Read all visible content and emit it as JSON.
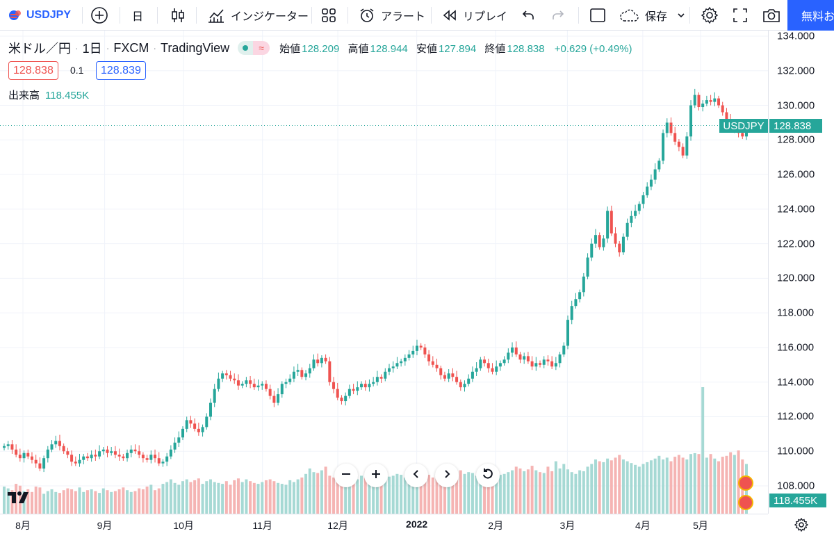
{
  "toolbar": {
    "symbol": "USDJPY",
    "interval": "日",
    "indicators_label": "インジケーター",
    "alert_label": "アラート",
    "replay_label": "リプレイ",
    "save_label": "保存",
    "free_button": "無料お"
  },
  "legend": {
    "title": "米ドル／円",
    "interval": "1日",
    "exchange": "FXCM",
    "source": "TradingView",
    "pill_symbol": "≈",
    "open_label": "始値",
    "open": "128.209",
    "high_label": "高値",
    "high": "128.944",
    "low_label": "安値",
    "low": "127.894",
    "close_label": "終値",
    "close": "128.838",
    "change": "+0.629 (+0.49%)",
    "bid": "128.838",
    "spread": "0.1",
    "ask": "128.839",
    "volume_label": "出来高",
    "volume": "118.455K"
  },
  "tags": {
    "symbol": "USDJPY",
    "last_price": "128.838",
    "volume": "118.455K"
  },
  "colors": {
    "up": "#26a69a",
    "down": "#ef5350",
    "accent": "#2962ff"
  },
  "chart_data": {
    "type": "candlestick",
    "title": "米ドル／円 · 1日 · FXCM",
    "y_ticks": [
      "134.000",
      "132.000",
      "130.000",
      "128.000",
      "126.000",
      "124.000",
      "122.000",
      "120.000",
      "118.000",
      "116.000",
      "114.000",
      "112.000",
      "110.000",
      "108.000"
    ],
    "ylim": [
      107,
      134.2
    ],
    "x_ticks": [
      "8月",
      "9月",
      "10月",
      "11月",
      "12月",
      "2022",
      "2月",
      "3月",
      "4月",
      "5月"
    ],
    "last_close": 128.838,
    "closes": [
      110.3,
      110.4,
      110.1,
      109.8,
      109.6,
      109.9,
      109.7,
      109.5,
      109.3,
      109.0,
      109.6,
      110.1,
      110.4,
      110.6,
      110.3,
      110.0,
      109.8,
      109.4,
      109.3,
      109.5,
      109.7,
      109.6,
      109.8,
      109.7,
      110.0,
      110.1,
      109.9,
      110.0,
      109.8,
      109.7,
      109.6,
      109.9,
      110.1,
      110.0,
      109.8,
      109.6,
      109.5,
      109.8,
      109.6,
      109.3,
      109.4,
      109.7,
      110.1,
      110.5,
      110.8,
      111.3,
      111.8,
      111.6,
      111.3,
      111.1,
      111.4,
      112.0,
      112.8,
      113.6,
      114.2,
      114.5,
      114.4,
      114.2,
      114.1,
      113.8,
      113.9,
      114.1,
      113.9,
      113.7,
      113.8,
      113.9,
      113.6,
      113.2,
      112.8,
      113.3,
      113.9,
      114.0,
      114.2,
      114.6,
      114.7,
      114.3,
      114.5,
      114.8,
      115.3,
      115.1,
      115.4,
      115.2,
      114.0,
      113.6,
      113.1,
      112.9,
      113.2,
      113.6,
      113.5,
      113.7,
      113.9,
      113.7,
      113.9,
      114.0,
      114.3,
      114.2,
      114.6,
      114.8,
      114.9,
      115.1,
      115.2,
      115.4,
      115.6,
      115.8,
      116.1,
      116.0,
      115.6,
      115.2,
      115.0,
      114.8,
      114.4,
      114.2,
      114.5,
      114.3,
      114.0,
      113.7,
      113.9,
      114.2,
      114.6,
      114.8,
      115.3,
      115.1,
      114.8,
      114.6,
      114.9,
      115.1,
      115.3,
      115.7,
      116.0,
      115.6,
      115.3,
      115.5,
      115.2,
      114.9,
      115.1,
      115.0,
      115.3,
      115.2,
      114.9,
      115.1,
      115.6,
      116.1,
      117.6,
      118.4,
      118.8,
      119.2,
      120.1,
      121.2,
      122.0,
      122.5,
      121.8,
      122.3,
      123.9,
      122.6,
      122.0,
      121.5,
      122.4,
      123.2,
      123.6,
      123.9,
      124.3,
      124.8,
      125.3,
      125.7,
      126.3,
      126.8,
      128.4,
      129.0,
      128.4,
      127.9,
      127.6,
      127.1,
      128.2,
      130.0,
      130.6,
      129.9,
      130.1,
      130.3,
      130.2,
      130.4,
      130.0,
      129.6,
      129.2,
      128.6,
      128.8,
      128.4,
      128.2,
      128.838
    ],
    "volumes": [
      30,
      28,
      26,
      33,
      31,
      25,
      27,
      24,
      30,
      29,
      22,
      25,
      27,
      24,
      23,
      26,
      28,
      27,
      25,
      29,
      24,
      26,
      27,
      25,
      23,
      28,
      26,
      24,
      25,
      27,
      29,
      26,
      24,
      25,
      28,
      27,
      30,
      32,
      26,
      28,
      33,
      35,
      38,
      34,
      32,
      36,
      38,
      35,
      37,
      39,
      33,
      36,
      38,
      35,
      34,
      33,
      36,
      32,
      37,
      39,
      35,
      38,
      36,
      34,
      33,
      35,
      37,
      38,
      36,
      34,
      33,
      32,
      37,
      35,
      38,
      40,
      44,
      50,
      46,
      45,
      48,
      52,
      42,
      40,
      38,
      43,
      41,
      44,
      39,
      38,
      42,
      40,
      44,
      43,
      45,
      37,
      39,
      41,
      42,
      44,
      43,
      40,
      38,
      42,
      45,
      47,
      46,
      43,
      40,
      41,
      44,
      42,
      45,
      43,
      46,
      48,
      44,
      46,
      45,
      42,
      40,
      42,
      44,
      47,
      45,
      43,
      44,
      46,
      48,
      52,
      50,
      47,
      49,
      53,
      48,
      46,
      45,
      52,
      47,
      58,
      50,
      55,
      49,
      46,
      44,
      48,
      47,
      52,
      55,
      60,
      58,
      57,
      61,
      59,
      62,
      65,
      60,
      58,
      56,
      54,
      52,
      55,
      57,
      59,
      61,
      64,
      60,
      62,
      58,
      63,
      65,
      62,
      60,
      66,
      67,
      66,
      140,
      62,
      66,
      61,
      58,
      63,
      64,
      68,
      65,
      70,
      60,
      55
    ],
    "volume_highlight": [
      {
        "index": 176,
        "value": 140
      }
    ]
  }
}
